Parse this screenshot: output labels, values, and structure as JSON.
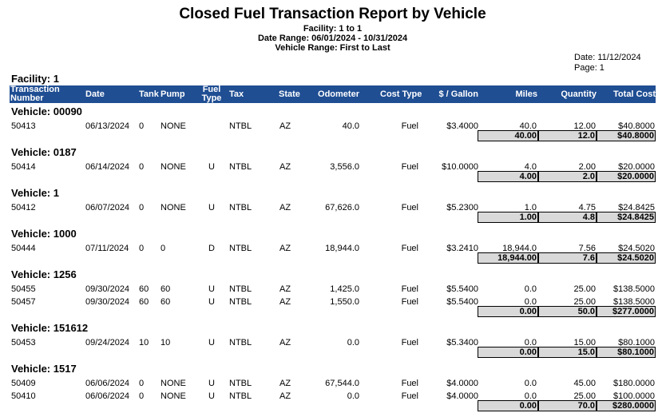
{
  "report": {
    "title": "Closed Fuel Transaction Report by Vehicle",
    "facility_range": "Facility: 1 to 1",
    "date_range": "Date Range: 06/01/2024 - 10/31/2024",
    "vehicle_range": "Vehicle Range: First to Last",
    "date": "Date: 11/12/2024",
    "page": "Page: 1",
    "facility_label": "Facility: 1"
  },
  "columns": {
    "txn_line1": "Transaction",
    "txn_line2": "Number",
    "date": "Date",
    "tank": "Tank",
    "pump": "Pump",
    "fuel_line1": "Fuel",
    "fuel_line2": "Type",
    "tax": "Tax",
    "state": "State",
    "odometer": "Odometer",
    "cost_type": "Cost Type",
    "per_gallon": "$ / Gallon",
    "miles": "Miles",
    "quantity": "Quantity",
    "total_cost": "Total Cost"
  },
  "vehicles": [
    {
      "label": "Vehicle: 00090",
      "rows": [
        {
          "txn": "50413",
          "date": "06/13/2024",
          "tank": "0",
          "pump": "NONE",
          "fuel": "",
          "tax": "NTBL",
          "state": "AZ",
          "odometer": "40.0",
          "cost_type": "Fuel",
          "per_gallon": "$3.4000",
          "miles": "40.0",
          "quantity": "12.00",
          "total": "$40.8000"
        }
      ],
      "totals": {
        "miles": "40.00",
        "quantity": "12.0",
        "total": "$40.8000"
      }
    },
    {
      "label": "Vehicle: 0187",
      "rows": [
        {
          "txn": "50414",
          "date": "06/14/2024",
          "tank": "0",
          "pump": "NONE",
          "fuel": "U",
          "tax": "NTBL",
          "state": "AZ",
          "odometer": "3,556.0",
          "cost_type": "Fuel",
          "per_gallon": "$10.0000",
          "miles": "4.0",
          "quantity": "2.00",
          "total": "$20.0000"
        }
      ],
      "totals": {
        "miles": "4.00",
        "quantity": "2.0",
        "total": "$20.0000"
      }
    },
    {
      "label": "Vehicle: 1",
      "rows": [
        {
          "txn": "50412",
          "date": "06/07/2024",
          "tank": "0",
          "pump": "NONE",
          "fuel": "U",
          "tax": "NTBL",
          "state": "AZ",
          "odometer": "67,626.0",
          "cost_type": "Fuel",
          "per_gallon": "$5.2300",
          "miles": "1.0",
          "quantity": "4.75",
          "total": "$24.8425"
        }
      ],
      "totals": {
        "miles": "1.00",
        "quantity": "4.8",
        "total": "$24.8425"
      }
    },
    {
      "label": "Vehicle: 1000",
      "rows": [
        {
          "txn": "50444",
          "date": "07/11/2024",
          "tank": "0",
          "pump": "0",
          "fuel": "D",
          "tax": "NTBL",
          "state": "AZ",
          "odometer": "18,944.0",
          "cost_type": "Fuel",
          "per_gallon": "$3.2410",
          "miles": "18,944.0",
          "quantity": "7.56",
          "total": "$24.5020"
        }
      ],
      "totals": {
        "miles": "18,944.00",
        "quantity": "7.6",
        "total": "$24.5020"
      }
    },
    {
      "label": "Vehicle: 1256",
      "rows": [
        {
          "txn": "50455",
          "date": "09/30/2024",
          "tank": "60",
          "pump": "60",
          "fuel": "U",
          "tax": "NTBL",
          "state": "AZ",
          "odometer": "1,425.0",
          "cost_type": "Fuel",
          "per_gallon": "$5.5400",
          "miles": "0.0",
          "quantity": "25.00",
          "total": "$138.5000"
        },
        {
          "txn": "50457",
          "date": "09/30/2024",
          "tank": "60",
          "pump": "60",
          "fuel": "U",
          "tax": "NTBL",
          "state": "AZ",
          "odometer": "1,550.0",
          "cost_type": "Fuel",
          "per_gallon": "$5.5400",
          "miles": "0.0",
          "quantity": "25.00",
          "total": "$138.5000"
        }
      ],
      "totals": {
        "miles": "0.00",
        "quantity": "50.0",
        "total": "$277.0000"
      }
    },
    {
      "label": "Vehicle: 151612",
      "rows": [
        {
          "txn": "50453",
          "date": "09/24/2024",
          "tank": "10",
          "pump": "10",
          "fuel": "U",
          "tax": "NTBL",
          "state": "AZ",
          "odometer": "0.0",
          "cost_type": "Fuel",
          "per_gallon": "$5.3400",
          "miles": "0.0",
          "quantity": "15.00",
          "total": "$80.1000"
        }
      ],
      "totals": {
        "miles": "0.00",
        "quantity": "15.0",
        "total": "$80.1000"
      }
    },
    {
      "label": "Vehicle: 1517",
      "rows": [
        {
          "txn": "50409",
          "date": "06/06/2024",
          "tank": "0",
          "pump": "NONE",
          "fuel": "U",
          "tax": "NTBL",
          "state": "AZ",
          "odometer": "67,544.0",
          "cost_type": "Fuel",
          "per_gallon": "$4.0000",
          "miles": "0.0",
          "quantity": "45.00",
          "total": "$180.0000"
        },
        {
          "txn": "50410",
          "date": "06/06/2024",
          "tank": "0",
          "pump": "NONE",
          "fuel": "U",
          "tax": "NTBL",
          "state": "AZ",
          "odometer": "0.0",
          "cost_type": "Fuel",
          "per_gallon": "$4.0000",
          "miles": "0.0",
          "quantity": "25.00",
          "total": "$100.0000"
        }
      ],
      "totals": {
        "miles": "0.00",
        "quantity": "70.0",
        "total": "$280.0000"
      }
    }
  ]
}
